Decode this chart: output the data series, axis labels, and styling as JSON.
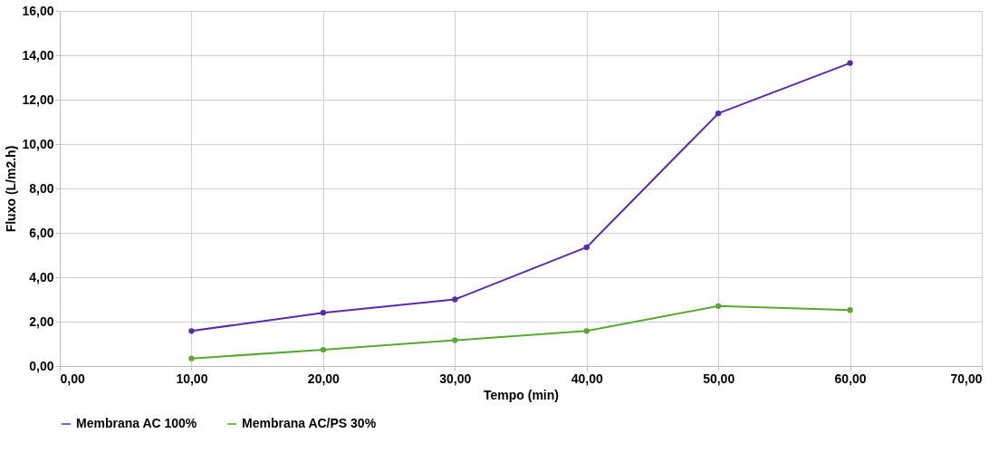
{
  "chart_data": {
    "type": "line",
    "xlabel": "Tempo (min)",
    "ylabel": "Fluxo (L/m2.h)",
    "x": [
      10,
      20,
      30,
      40,
      50,
      60
    ],
    "series": [
      {
        "name": "Membrana AC 100%",
        "color": "#5b2aa8",
        "values": [
          1.58,
          2.4,
          3.0,
          5.35,
          11.38,
          13.65
        ]
      },
      {
        "name": "Membrana AC/PS 30%",
        "color": "#5aa832",
        "values": [
          0.34,
          0.73,
          1.16,
          1.58,
          2.7,
          2.52
        ]
      }
    ],
    "xlim": [
      0,
      70
    ],
    "xticks": [
      {
        "value": 0,
        "label": "0,00"
      },
      {
        "value": 10,
        "label": "10,00"
      },
      {
        "value": 20,
        "label": "20,00"
      },
      {
        "value": 30,
        "label": "30,00"
      },
      {
        "value": 40,
        "label": "40,00"
      },
      {
        "value": 50,
        "label": "50,00"
      },
      {
        "value": 60,
        "label": "60,00"
      },
      {
        "value": 70,
        "label": "70,00"
      }
    ],
    "ylim": [
      0,
      16
    ],
    "yticks": [
      {
        "value": 0,
        "label": "0,00"
      },
      {
        "value": 2,
        "label": "2,00"
      },
      {
        "value": 4,
        "label": "4,00"
      },
      {
        "value": 6,
        "label": "6,00"
      },
      {
        "value": 8,
        "label": "8,00"
      },
      {
        "value": 10,
        "label": "10,00"
      },
      {
        "value": 12,
        "label": "12,00"
      },
      {
        "value": 14,
        "label": "14,00"
      },
      {
        "value": 16,
        "label": "16,00"
      }
    ],
    "grid": true,
    "legend": "bottom",
    "marker": "circle",
    "line_style": "solid"
  }
}
